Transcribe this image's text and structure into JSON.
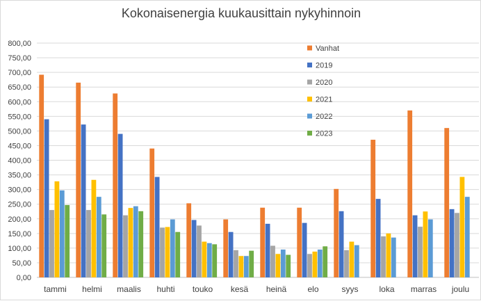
{
  "chart_data": {
    "type": "bar",
    "title": "Kokonaisenergia kuukausittain nykyhinnoin",
    "categories": [
      "tammi",
      "helmi",
      "maalis",
      "huhti",
      "touko",
      "kesä",
      "heinä",
      "elo",
      "syys",
      "loka",
      "marras",
      "joulu"
    ],
    "ylim": [
      0,
      800
    ],
    "yticks": [
      "0,00",
      "50,00",
      "100,00",
      "150,00",
      "200,00",
      "250,00",
      "300,00",
      "350,00",
      "400,00",
      "450,00",
      "500,00",
      "550,00",
      "600,00",
      "650,00",
      "700,00",
      "750,00",
      "800,00"
    ],
    "grid": true,
    "legend_position": "top-right",
    "series": [
      {
        "name": "Vanhat",
        "color": "#ED7D31",
        "values": [
          692,
          665,
          628,
          440,
          253,
          198,
          238,
          238,
          302,
          470,
          570,
          510
        ]
      },
      {
        "name": "2019",
        "color": "#4472C4",
        "values": [
          540,
          522,
          490,
          343,
          196,
          155,
          183,
          186,
          226,
          268,
          212,
          233
        ]
      },
      {
        "name": "2020",
        "color": "#A5A5A5",
        "values": [
          230,
          230,
          212,
          170,
          177,
          93,
          108,
          80,
          93,
          140,
          173,
          220
        ]
      },
      {
        "name": "2021",
        "color": "#FFC000",
        "values": [
          328,
          333,
          237,
          172,
          122,
          73,
          80,
          88,
          122,
          150,
          225,
          343
        ]
      },
      {
        "name": "2022",
        "color": "#5B9BD5",
        "values": [
          297,
          275,
          243,
          198,
          117,
          73,
          95,
          95,
          110,
          136,
          198,
          275
        ]
      },
      {
        "name": "2023",
        "color": "#70AD47",
        "values": [
          247,
          215,
          226,
          155,
          113,
          91,
          77,
          106,
          null,
          null,
          null,
          null
        ]
      }
    ]
  }
}
